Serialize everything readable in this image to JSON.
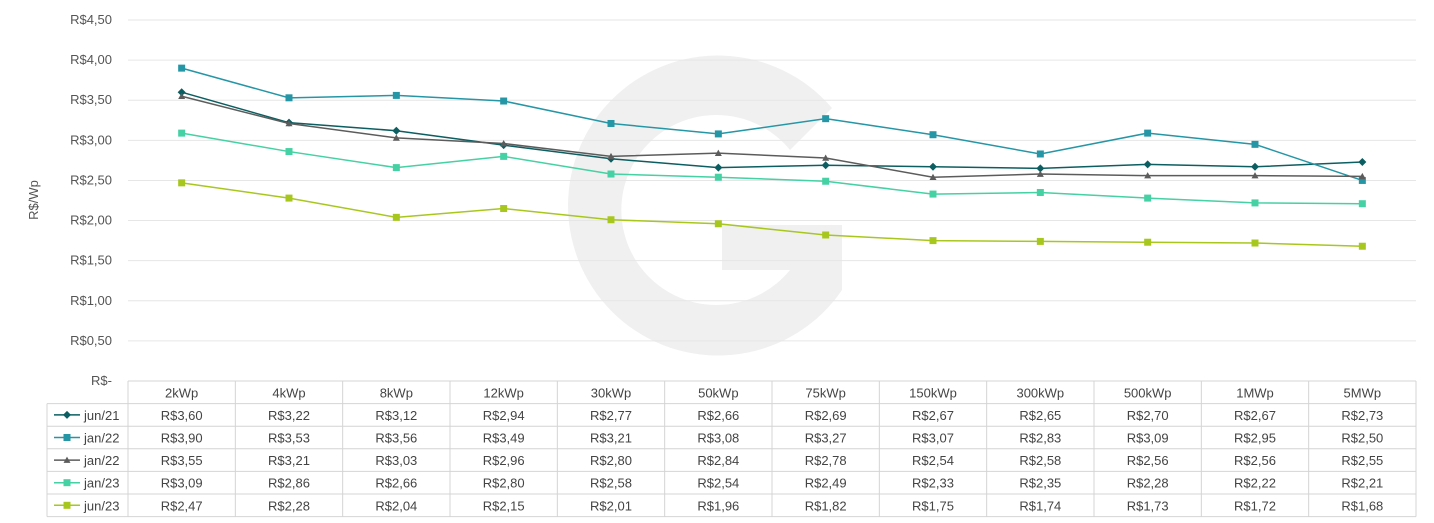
{
  "chart_data": {
    "type": "line",
    "ylabel": "R$/Wp",
    "ylim": [
      0,
      4.5
    ],
    "yticks": [
      "R$-",
      "R$0,50",
      "R$1,00",
      "R$1,50",
      "R$2,00",
      "R$2,50",
      "R$3,00",
      "R$3,50",
      "R$4,00",
      "R$4,50"
    ],
    "categories": [
      "2kWp",
      "4kWp",
      "8kWp",
      "12kWp",
      "30kWp",
      "50kWp",
      "75kWp",
      "150kWp",
      "300kWp",
      "500kWp",
      "1MWp",
      "5MWp"
    ],
    "grid": true,
    "legend": "table-bottom",
    "series": [
      {
        "name": "jun/21",
        "color": "#0b5e61",
        "marker": "diamond",
        "values": [
          3.6,
          3.22,
          3.12,
          2.94,
          2.77,
          2.66,
          2.69,
          2.67,
          2.65,
          2.7,
          2.67,
          2.73
        ],
        "labels": [
          "R$3,60",
          "R$3,22",
          "R$3,12",
          "R$2,94",
          "R$2,77",
          "R$2,66",
          "R$2,69",
          "R$2,67",
          "R$2,65",
          "R$2,70",
          "R$2,67",
          "R$2,73"
        ]
      },
      {
        "name": "jan/22",
        "color": "#2596a6",
        "marker": "square",
        "values": [
          3.9,
          3.53,
          3.56,
          3.49,
          3.21,
          3.08,
          3.27,
          3.07,
          2.83,
          3.09,
          2.95,
          2.5
        ],
        "labels": [
          "R$3,90",
          "R$3,53",
          "R$3,56",
          "R$3,49",
          "R$3,21",
          "R$3,08",
          "R$3,27",
          "R$3,07",
          "R$2,83",
          "R$3,09",
          "R$2,95",
          "R$2,50"
        ]
      },
      {
        "name": "jan/22",
        "color": "#5c5c5c",
        "marker": "triangle",
        "values": [
          3.55,
          3.21,
          3.03,
          2.96,
          2.8,
          2.84,
          2.78,
          2.54,
          2.58,
          2.56,
          2.56,
          2.55
        ],
        "labels": [
          "R$3,55",
          "R$3,21",
          "R$3,03",
          "R$2,96",
          "R$2,80",
          "R$2,84",
          "R$2,78",
          "R$2,54",
          "R$2,58",
          "R$2,56",
          "R$2,56",
          "R$2,55"
        ]
      },
      {
        "name": "jan/23",
        "color": "#45d1a3",
        "marker": "square",
        "values": [
          3.09,
          2.86,
          2.66,
          2.8,
          2.58,
          2.54,
          2.49,
          2.33,
          2.35,
          2.28,
          2.22,
          2.21
        ],
        "labels": [
          "R$3,09",
          "R$2,86",
          "R$2,66",
          "R$2,80",
          "R$2,58",
          "R$2,54",
          "R$2,49",
          "R$2,33",
          "R$2,35",
          "R$2,28",
          "R$2,22",
          "R$2,21"
        ]
      },
      {
        "name": "jun/23",
        "color": "#a8c71e",
        "marker": "square",
        "values": [
          2.47,
          2.28,
          2.04,
          2.15,
          2.01,
          1.96,
          1.82,
          1.75,
          1.74,
          1.73,
          1.72,
          1.68
        ],
        "labels": [
          "R$2,47",
          "R$2,28",
          "R$2,04",
          "R$2,15",
          "R$2,01",
          "R$1,96",
          "R$1,82",
          "R$1,75",
          "R$1,74",
          "R$1,73",
          "R$1,72",
          "R$1,68"
        ]
      }
    ]
  }
}
